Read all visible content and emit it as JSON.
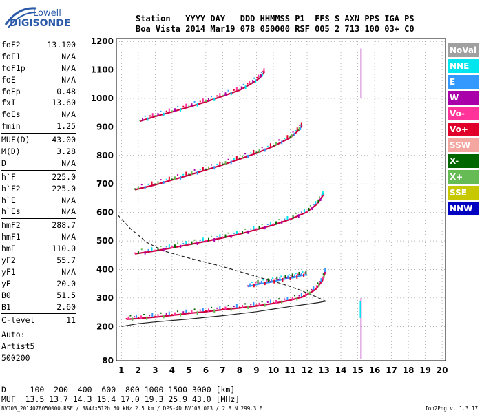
{
  "logo": {
    "top": "Lowell",
    "main": "DIGISONDE"
  },
  "header": {
    "row1": "Station   YYYY DAY   DDD HHMMSS P1  FFS S AXN PPS IGA PS",
    "row2": "Boa Vista 2014 Mar19 078 050000 RSF 005 2 713 100 03+ C0"
  },
  "params": [
    [
      {
        "name": "foF2",
        "value": "13.100"
      },
      {
        "name": "foF1",
        "value": "N/A"
      },
      {
        "name": "foF1p",
        "value": "N/A"
      },
      {
        "name": "foE",
        "value": "N/A"
      },
      {
        "name": "foEp",
        "value": "0.48"
      },
      {
        "name": "fxI",
        "value": "13.60"
      },
      {
        "name": "foEs",
        "value": "N/A"
      },
      {
        "name": "fmin",
        "value": "1.25"
      }
    ],
    [
      {
        "name": "MUF(D)",
        "value": "43.00"
      },
      {
        "name": "M(D)",
        "value": "3.28"
      },
      {
        "name": "D",
        "value": "N/A"
      }
    ],
    [
      {
        "name": "h`F",
        "value": "225.0"
      },
      {
        "name": "h`F2",
        "value": "225.0"
      },
      {
        "name": "h`E",
        "value": "N/A"
      },
      {
        "name": "h`Es",
        "value": "N/A"
      }
    ],
    [
      {
        "name": "hmF2",
        "value": "288.7"
      },
      {
        "name": "hmF1",
        "value": "N/A"
      },
      {
        "name": "hmE",
        "value": "110.0"
      },
      {
        "name": "yF2",
        "value": "55.7"
      },
      {
        "name": "yF1",
        "value": "N/A"
      },
      {
        "name": "yE",
        "value": "20.0"
      },
      {
        "name": "B0",
        "value": "51.5"
      },
      {
        "name": "B1",
        "value": "2.60"
      }
    ],
    [
      {
        "name": "C-level",
        "value": "11"
      }
    ]
  ],
  "auto": {
    "l1": "Auto:",
    "l2": "Artist5",
    "l3": "500200"
  },
  "muf_table": {
    "row1": "D     100  200  400  600  800 1000 1500 3000 [km]",
    "row2": "MUF  13.5 13.7 14.3 15.4 17.0 19.3 25.9 43.0 [MHz]"
  },
  "footer": {
    "left": "BVJ03_2014078050000.RSF / 384fx512h 50 kHz 2.5 km / DPS-4D BVJ03 003 / 2.8 N 299.3 E",
    "right": "Ion2Png v. 1.3.17"
  },
  "legend": [
    {
      "label": "NoVal",
      "color": "#a0a0a0"
    },
    {
      "label": "NNE",
      "color": "#00e5ee"
    },
    {
      "label": "E",
      "color": "#3399ff"
    },
    {
      "label": "W",
      "color": "#aa00aa"
    },
    {
      "label": "Vo-",
      "color": "#ff3399"
    },
    {
      "label": "Vo+",
      "color": "#e0002a"
    },
    {
      "label": "SSW",
      "color": "#f4a6a0"
    },
    {
      "label": "X-",
      "color": "#006600"
    },
    {
      "label": "X+",
      "color": "#66bb55"
    },
    {
      "label": "SSE",
      "color": "#c8c800"
    },
    {
      "label": "NNW",
      "color": "#0000c0"
    }
  ],
  "chart_data": {
    "type": "scatter",
    "xlabel": "",
    "ylabel": "",
    "xlim": [
      0.7,
      20.2
    ],
    "ylim": [
      80,
      1210
    ],
    "x_ticks": [
      1,
      2,
      3,
      4,
      5,
      6,
      7,
      8,
      9,
      10,
      11,
      12,
      13,
      14,
      15,
      16,
      17,
      18,
      19,
      20
    ],
    "y_ticks": [
      80,
      200,
      300,
      400,
      500,
      600,
      700,
      800,
      900,
      1000,
      1100,
      1200
    ],
    "traces": [
      {
        "name": "1st order",
        "color": "#cc0044",
        "points": [
          [
            1.3,
            225
          ],
          [
            2,
            228
          ],
          [
            3,
            233
          ],
          [
            4,
            239
          ],
          [
            5,
            246
          ],
          [
            6,
            252
          ],
          [
            7,
            259
          ],
          [
            8,
            265
          ],
          [
            9,
            272
          ],
          [
            10,
            281
          ],
          [
            11,
            292
          ],
          [
            11.8,
            305
          ],
          [
            12.5,
            330
          ],
          [
            12.9,
            360
          ],
          [
            13.1,
            395
          ]
        ]
      },
      {
        "name": "2nd order",
        "color": "#cc0044",
        "points": [
          [
            1.8,
            455
          ],
          [
            3,
            465
          ],
          [
            4,
            476
          ],
          [
            5,
            487
          ],
          [
            6,
            499
          ],
          [
            7,
            511
          ],
          [
            8,
            524
          ],
          [
            9,
            540
          ],
          [
            10,
            556
          ],
          [
            11,
            576
          ],
          [
            12,
            602
          ],
          [
            12.6,
            630
          ],
          [
            13,
            665
          ]
        ]
      },
      {
        "name": "3rd order",
        "color": "#cc0044",
        "points": [
          [
            1.8,
            680
          ],
          [
            3,
            697
          ],
          [
            4,
            714
          ],
          [
            5,
            731
          ],
          [
            6,
            749
          ],
          [
            7,
            767
          ],
          [
            8,
            787
          ],
          [
            9,
            808
          ],
          [
            10,
            832
          ],
          [
            11,
            862
          ],
          [
            11.5,
            888
          ],
          [
            11.7,
            905
          ]
        ]
      },
      {
        "name": "4th order",
        "color": "#cc0044",
        "points": [
          [
            2.1,
            920
          ],
          [
            3,
            937
          ],
          [
            4,
            953
          ],
          [
            5,
            970
          ],
          [
            6,
            988
          ],
          [
            7,
            1008
          ],
          [
            8,
            1029
          ],
          [
            8.7,
            1052
          ],
          [
            9.2,
            1072
          ],
          [
            9.5,
            1095
          ]
        ]
      },
      {
        "name": "spread",
        "color": "#3399ff",
        "points": [
          [
            8.5,
            340
          ],
          [
            9.2,
            350
          ],
          [
            9.8,
            355
          ],
          [
            10.3,
            362
          ],
          [
            10.8,
            368
          ],
          [
            11.2,
            372
          ],
          [
            11.6,
            378
          ],
          [
            12,
            382
          ]
        ]
      }
    ],
    "profile": {
      "name": "profile",
      "points": [
        [
          1,
          200
        ],
        [
          2,
          210
        ],
        [
          3,
          216
        ],
        [
          4,
          221
        ],
        [
          5,
          226
        ],
        [
          6,
          232
        ],
        [
          7,
          238
        ],
        [
          8,
          245
        ],
        [
          9,
          252
        ],
        [
          10,
          261
        ],
        [
          11,
          270
        ],
        [
          12,
          278
        ],
        [
          12.7,
          284
        ],
        [
          13.1,
          288.7
        ]
      ]
    },
    "virtual_height": {
      "name": "virtual",
      "points": [
        [
          0.8,
          590
        ],
        [
          1.5,
          545
        ],
        [
          2.5,
          495
        ],
        [
          3.5,
          465
        ],
        [
          5,
          440
        ],
        [
          7,
          410
        ],
        [
          9,
          375
        ],
        [
          10.5,
          350
        ],
        [
          11.5,
          330
        ],
        [
          12.5,
          305
        ],
        [
          13.1,
          288.7
        ]
      ]
    }
  }
}
